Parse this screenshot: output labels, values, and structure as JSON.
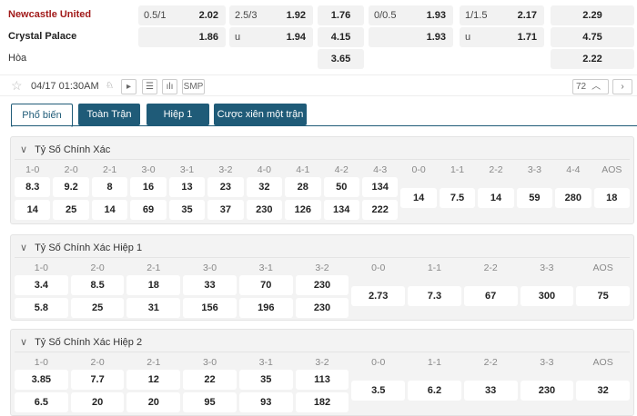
{
  "match": {
    "home": "Newcastle United",
    "away": "Crystal Palace",
    "draw": "Hòa",
    "rows": [
      [
        [
          "0.5/1",
          "2.02"
        ],
        [
          "2.5/3",
          "1.92"
        ],
        [
          "",
          "1.76"
        ],
        [
          "0/0.5",
          "1.93"
        ],
        [
          "1/1.5",
          "2.17"
        ],
        [
          "",
          "2.29"
        ]
      ],
      [
        [
          "",
          "1.86"
        ],
        [
          "u",
          "1.94"
        ],
        [
          "",
          "4.15"
        ],
        [
          "",
          "1.93"
        ],
        [
          "u",
          "1.71"
        ],
        [
          "",
          "4.75"
        ]
      ],
      [
        null,
        null,
        [
          "",
          "3.65"
        ],
        null,
        null,
        [
          "",
          "2.22"
        ]
      ]
    ],
    "datetime": "04/17 01:30AM",
    "smp": "SMP",
    "markets_count": "72"
  },
  "tabs": [
    "Phổ biến",
    "Toàn Trận",
    "Hiệp 1",
    "Cược xiên một trận"
  ],
  "sections": [
    {
      "title": "Tỷ Số Chính Xác",
      "labels": [
        "1-0",
        "2-0",
        "2-1",
        "3-0",
        "3-1",
        "3-2",
        "4-0",
        "4-1",
        "4-2",
        "4-3",
        "0-0",
        "1-1",
        "2-2",
        "3-3",
        "4-4",
        "AOS"
      ],
      "home": [
        "8.3",
        "9.2",
        "8",
        "16",
        "13",
        "23",
        "32",
        "28",
        "50",
        "134"
      ],
      "away": [
        "14",
        "25",
        "14",
        "69",
        "35",
        "37",
        "230",
        "126",
        "134",
        "222"
      ],
      "draw": [
        "14",
        "7.5",
        "14",
        "59",
        "280",
        "18"
      ]
    },
    {
      "title": "Tỷ Số Chính Xác Hiệp 1",
      "labels": [
        "1-0",
        "2-0",
        "2-1",
        "3-0",
        "3-1",
        "3-2",
        "0-0",
        "1-1",
        "2-2",
        "3-3",
        "AOS"
      ],
      "home": [
        "3.4",
        "8.5",
        "18",
        "33",
        "70",
        "230"
      ],
      "away": [
        "5.8",
        "25",
        "31",
        "156",
        "196",
        "230"
      ],
      "draw": [
        "2.73",
        "7.3",
        "67",
        "300",
        "75"
      ]
    },
    {
      "title": "Tỷ Số Chính Xác Hiệp 2",
      "labels": [
        "1-0",
        "2-0",
        "2-1",
        "3-0",
        "3-1",
        "3-2",
        "0-0",
        "1-1",
        "2-2",
        "3-3",
        "AOS"
      ],
      "home": [
        "3.85",
        "7.7",
        "12",
        "22",
        "35",
        "113"
      ],
      "away": [
        "6.5",
        "20",
        "20",
        "95",
        "93",
        "182"
      ],
      "draw": [
        "3.5",
        "6.2",
        "33",
        "230",
        "32"
      ]
    }
  ],
  "colors": {
    "home": "#a11a1a",
    "tab": "#1f5b78"
  }
}
